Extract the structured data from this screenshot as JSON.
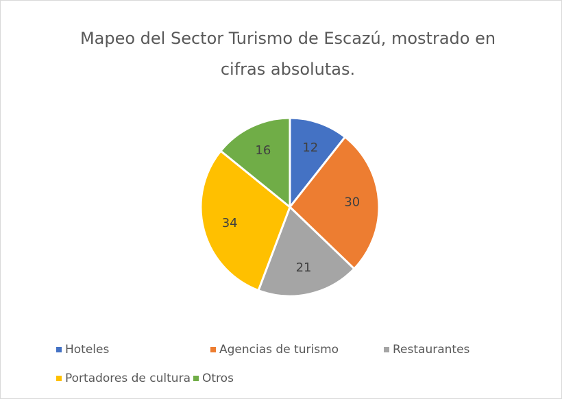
{
  "chart_data": {
    "type": "pie",
    "title": "Mapeo del Sector Turismo de Escazú, mostrado en cifras absolutas.",
    "categories": [
      "Hoteles",
      "Agencias de turismo",
      "Restaurantes",
      "Portadores de cultura",
      "Otros"
    ],
    "values": [
      12,
      30,
      21,
      34,
      16
    ],
    "colors": [
      "#4472c4",
      "#ed7d31",
      "#a5a5a5",
      "#ffc000",
      "#70ad47"
    ],
    "legend": "bottom"
  }
}
